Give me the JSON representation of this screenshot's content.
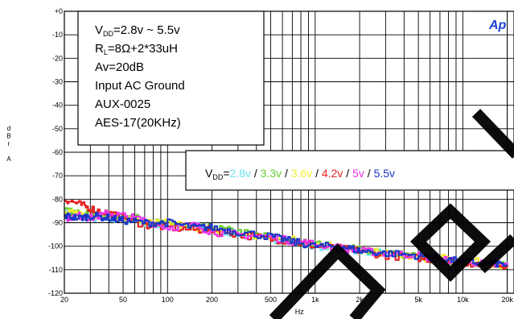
{
  "brand": "Ap",
  "chart_data": {
    "type": "line",
    "xlabel": "Hz",
    "ylabel_letters": [
      "d",
      "B",
      "r",
      "",
      "A"
    ],
    "x_scale": "log",
    "xlim": [
      20,
      20000
    ],
    "ylim": [
      -120,
      0
    ],
    "x_ticks": [
      {
        "value": 20,
        "label": "20"
      },
      {
        "value": 50,
        "label": "50"
      },
      {
        "value": 100,
        "label": "100"
      },
      {
        "value": 200,
        "label": "200"
      },
      {
        "value": 500,
        "label": "500"
      },
      {
        "value": 1000,
        "label": "1k"
      },
      {
        "value": 2000,
        "label": "2k"
      },
      {
        "value": 5000,
        "label": "5k"
      },
      {
        "value": 10000,
        "label": "10k"
      },
      {
        "value": 20000,
        "label": "20k"
      }
    ],
    "y_ticks": [
      {
        "value": 0,
        "label": "+0"
      },
      {
        "value": -10,
        "label": "-10"
      },
      {
        "value": -20,
        "label": "-20"
      },
      {
        "value": -30,
        "label": "-30"
      },
      {
        "value": -40,
        "label": "-40"
      },
      {
        "value": -50,
        "label": "-50"
      },
      {
        "value": -60,
        "label": "-60"
      },
      {
        "value": -70,
        "label": "-70"
      },
      {
        "value": -80,
        "label": "-80"
      },
      {
        "value": -90,
        "label": "-90"
      },
      {
        "value": -100,
        "label": "-100"
      },
      {
        "value": -110,
        "label": "-110"
      },
      {
        "value": -120,
        "label": "-120"
      }
    ],
    "grid": true,
    "conditions": [
      {
        "pre": "V",
        "sub": "DD",
        "post": "=2.8v ~ 5.5v"
      },
      {
        "pre": "R",
        "sub": "L",
        "post": "=8Ω+2*33uH"
      },
      {
        "pre": "Av=20dB",
        "sub": "",
        "post": ""
      },
      {
        "pre": "Input AC Ground",
        "sub": "",
        "post": ""
      },
      {
        "pre": "AUX-0025",
        "sub": "",
        "post": ""
      },
      {
        "pre": "AES-17(20KHz)",
        "sub": "",
        "post": ""
      }
    ],
    "legend": {
      "prefix": "V",
      "sub": "DD",
      "equals": "=",
      "separator": " / "
    },
    "series": [
      {
        "name": "2.8v",
        "color": "#6fe3f5",
        "x": [
          20,
          25,
          30,
          40,
          50,
          70,
          100,
          150,
          200,
          300,
          500,
          700,
          1000,
          1500,
          2000,
          3000,
          5000,
          7000,
          10000,
          15000,
          20000
        ],
        "y": [
          -86,
          -87,
          -88,
          -89,
          -88,
          -90,
          -92,
          -91,
          -93,
          -95,
          -97,
          -98,
          -100,
          -101,
          -102,
          -103,
          -105,
          -106,
          -107,
          -108,
          -108
        ]
      },
      {
        "name": "3.3v",
        "color": "#66cc33",
        "x": [
          20,
          25,
          30,
          40,
          50,
          70,
          100,
          150,
          200,
          300,
          500,
          700,
          1000,
          1500,
          2000,
          3000,
          5000,
          7000,
          10000,
          15000,
          20000
        ],
        "y": [
          -85,
          -86,
          -86,
          -88,
          -87,
          -89,
          -91,
          -92,
          -92,
          -94,
          -96,
          -98,
          -99,
          -101,
          -101,
          -103,
          -104,
          -106,
          -107,
          -107,
          -108
        ]
      },
      {
        "name": "3.6v",
        "color": "#f2ec30",
        "x": [
          20,
          25,
          30,
          40,
          50,
          70,
          100,
          150,
          200,
          300,
          500,
          700,
          1000,
          1500,
          2000,
          3000,
          5000,
          7000,
          10000,
          15000,
          20000
        ],
        "y": [
          -86,
          -86,
          -87,
          -87,
          -88,
          -90,
          -90,
          -92,
          -93,
          -95,
          -97,
          -97,
          -99,
          -100,
          -102,
          -103,
          -105,
          -105,
          -106,
          -107,
          -109
        ]
      },
      {
        "name": "4.2v",
        "color": "#e32222",
        "x": [
          20,
          25,
          30,
          40,
          50,
          70,
          100,
          150,
          200,
          300,
          500,
          700,
          1000,
          1500,
          2000,
          3000,
          5000,
          7000,
          10000,
          15000,
          20000
        ],
        "y": [
          -80,
          -82,
          -84,
          -86,
          -88,
          -91,
          -92,
          -93,
          -93,
          -95,
          -97,
          -98,
          -100,
          -101,
          -102,
          -104,
          -105,
          -106,
          -107,
          -108,
          -108
        ]
      },
      {
        "name": "5v",
        "color": "#ee33ee",
        "x": [
          20,
          25,
          30,
          40,
          50,
          70,
          100,
          150,
          200,
          300,
          500,
          700,
          1000,
          1500,
          2000,
          3000,
          5000,
          7000,
          10000,
          15000,
          20000
        ],
        "y": [
          -88,
          -87,
          -88,
          -86,
          -87,
          -89,
          -92,
          -91,
          -94,
          -95,
          -96,
          -98,
          -99,
          -101,
          -102,
          -103,
          -104,
          -106,
          -106,
          -108,
          -108
        ]
      },
      {
        "name": "5.5v",
        "color": "#1a36c8",
        "x": [
          20,
          25,
          30,
          40,
          50,
          70,
          100,
          150,
          200,
          300,
          500,
          700,
          1000,
          1500,
          2000,
          3000,
          5000,
          7000,
          10000,
          15000,
          20000
        ],
        "y": [
          -87,
          -88,
          -87,
          -88,
          -89,
          -90,
          -90,
          -92,
          -92,
          -94,
          -96,
          -98,
          -100,
          -100,
          -102,
          -103,
          -104,
          -105,
          -107,
          -107,
          -108
        ]
      }
    ]
  }
}
